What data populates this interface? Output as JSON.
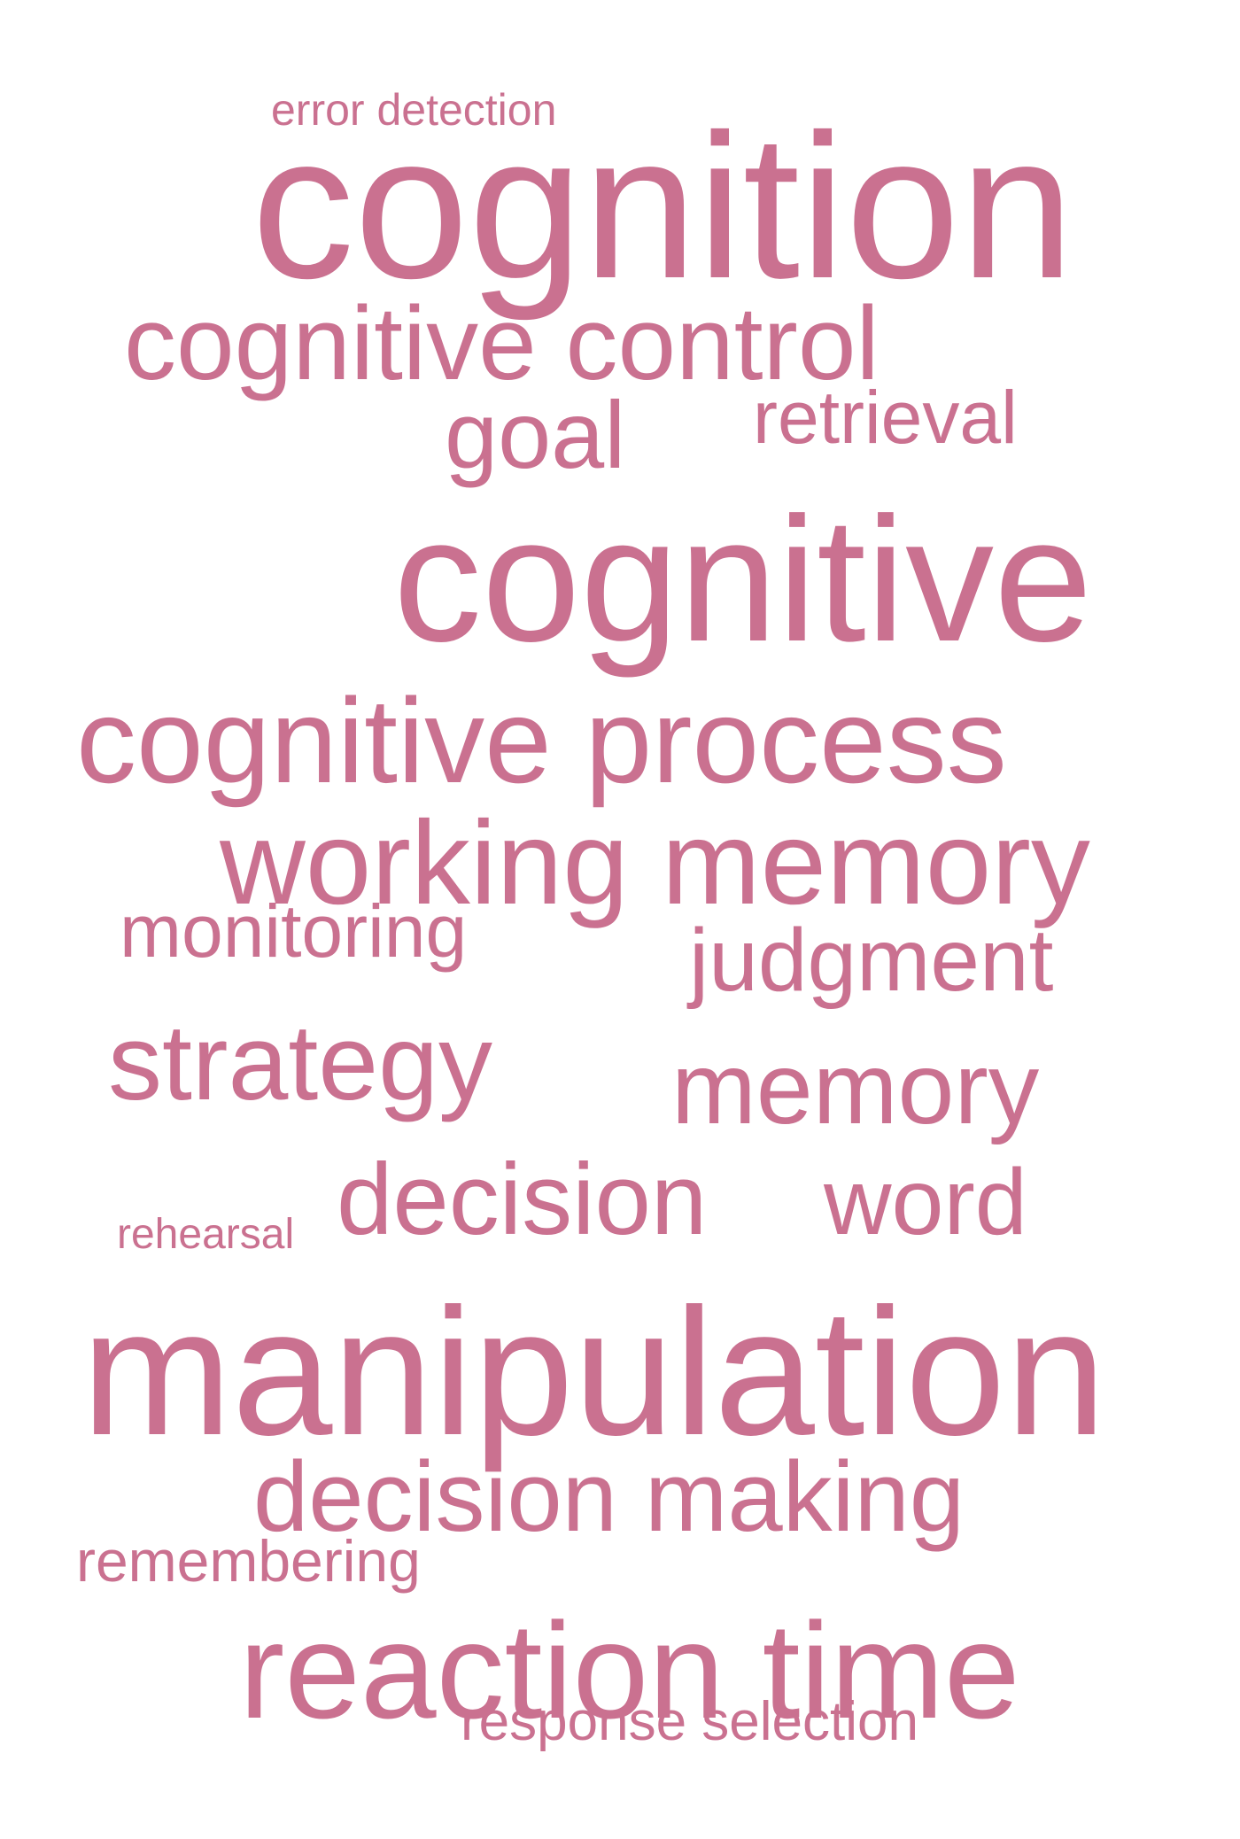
{
  "word_cloud": {
    "color": "#ca7190",
    "words": {
      "error_detection": "error detection",
      "cognition": "cognition",
      "cognitive_control": "cognitive control",
      "goal": "goal",
      "retrieval": "retrieval",
      "cognitive": "cognitive",
      "cognitive_process": "cognitive process",
      "working_memory": "working memory",
      "monitoring": "monitoring",
      "judgment": "judgment",
      "strategy": "strategy",
      "memory": "memory",
      "decision": "decision",
      "word": "word",
      "rehearsal": "rehearsal",
      "manipulation": "manipulation",
      "decision_making": "decision making",
      "remembering": "remembering",
      "reaction_time": "reaction time",
      "response_selection": "response selection"
    }
  }
}
